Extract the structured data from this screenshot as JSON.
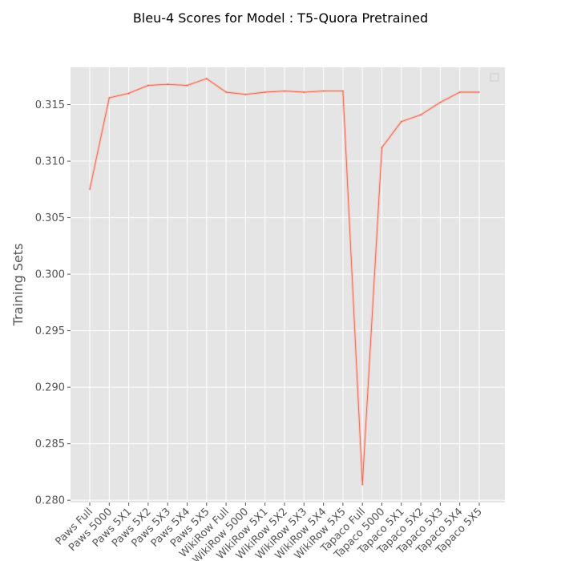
{
  "chart_data": {
    "type": "line",
    "title": "Bleu-4 Scores for Model : T5-Quora Pretrained",
    "xlabel": "",
    "ylabel": "Training Sets",
    "categories": [
      "Paws Full",
      "Paws 5000",
      "Paws 5X1",
      "Paws 5X2",
      "Paws 5X3",
      "Paws 5X4",
      "Paws 5X5",
      "WikiRow Full",
      "WikiRow 5000",
      "WikiRow 5X1",
      "WikiRow 5X2",
      "WikiRow 5X3",
      "WikiRow 5X4",
      "WikiRow 5X5",
      "Tapaco Full",
      "Tapaco 5000",
      "Tapaco 5X1",
      "Tapaco 5X2",
      "Tapaco 5X3",
      "Tapaco 5X4",
      "Tapaco 5X5"
    ],
    "series": [
      {
        "values": [
          0.3075,
          0.3156,
          0.316,
          0.3167,
          0.3168,
          0.3167,
          0.3173,
          0.3161,
          0.3159,
          0.3161,
          0.3162,
          0.3161,
          0.3162,
          0.3162,
          0.2814,
          0.3112,
          0.3135,
          0.3141,
          0.3152,
          0.3161,
          0.3161
        ]
      }
    ],
    "yticks": [
      0.28,
      0.285,
      0.29,
      0.295,
      0.3,
      0.305,
      0.31,
      0.315
    ],
    "ylim": [
      0.2798,
      0.3183
    ],
    "grid": true,
    "legend": "top-right",
    "colors": {
      "line": "#E24A33",
      "line_light": "#F6C7BE",
      "background": "#E5E5E5",
      "grid": "#FFFFFF"
    }
  }
}
